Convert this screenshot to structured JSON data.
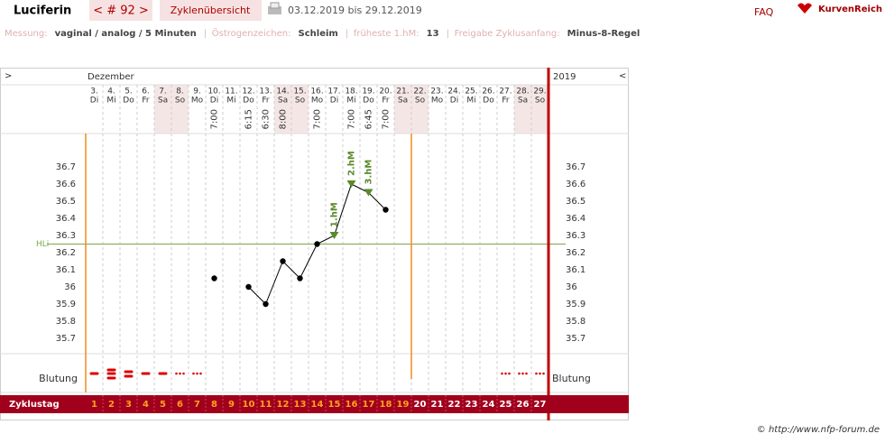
{
  "header": {
    "name": "Luciferin",
    "cycle": "< # 92 >",
    "overview": "Zyklenübersicht",
    "range": "03.12.2019 bis 29.12.2019",
    "faq": "FAQ",
    "logo": "KurvenReich"
  },
  "info": [
    {
      "label": "Messung:",
      "value": "vaginal / analog / 5 Minuten"
    },
    {
      "label": "Östrogenzeichen:",
      "value": "Schleim"
    },
    {
      "label": "früheste 1.hM:",
      "value": "13"
    },
    {
      "label": "Freigabe Zyklusanfang:",
      "value": "Minus-8-Regel"
    }
  ],
  "chart_data": {
    "type": "line",
    "nav_left": ">",
    "nav_right": "<",
    "month": "Dezember",
    "year": "2019",
    "categories": [
      "3.",
      "4.",
      "5.",
      "6.",
      "7.",
      "8.",
      "9.",
      "10.",
      "11.",
      "12.",
      "13.",
      "14.",
      "15.",
      "16.",
      "17.",
      "18.",
      "19.",
      "20.",
      "21.",
      "22.",
      "23.",
      "24.",
      "25.",
      "26.",
      "27.",
      "28.",
      "29."
    ],
    "weekdays": [
      "Di",
      "Mi",
      "Do",
      "Fr",
      "Sa",
      "So",
      "Mo",
      "Di",
      "Mi",
      "Do",
      "Fr",
      "Sa",
      "So",
      "Mo",
      "Di",
      "Mi",
      "Do",
      "Fr",
      "Sa",
      "So",
      "Mo",
      "Di",
      "Mi",
      "Do",
      "Fr",
      "Sa",
      "So"
    ],
    "times": [
      null,
      null,
      null,
      null,
      null,
      null,
      null,
      "7:00",
      null,
      "6:15",
      "6:30",
      "8:00",
      null,
      "7:00",
      null,
      "7:00",
      "6:45",
      "7:00",
      null,
      null,
      null,
      null,
      null,
      null,
      null,
      null,
      null
    ],
    "values": [
      null,
      null,
      null,
      null,
      null,
      null,
      null,
      36.05,
      null,
      36.0,
      35.9,
      36.15,
      36.05,
      36.25,
      36.3,
      36.6,
      36.55,
      36.45,
      null,
      null,
      null,
      null,
      null,
      null,
      null,
      null,
      null
    ],
    "high_labels": [
      null,
      null,
      null,
      null,
      null,
      null,
      null,
      null,
      null,
      null,
      null,
      null,
      null,
      null,
      "1.hM",
      "2.hM",
      "3.hM",
      null,
      null,
      null,
      null,
      null,
      null,
      null,
      null,
      null,
      null
    ],
    "color": "#000000",
    "high_color": "#5a8a2a",
    "ylim": [
      35.6,
      36.9
    ],
    "yticks": [
      35.7,
      35.8,
      35.9,
      36,
      36.1,
      36.2,
      36.3,
      36.4,
      36.5,
      36.6,
      36.7
    ],
    "hline": {
      "value": 36.25,
      "label": "HLi",
      "color": "#7aa84a"
    },
    "bleeding_label": "Blutung",
    "cycle_day_label": "Zyklustag",
    "cycle_days": [
      1,
      2,
      3,
      4,
      5,
      6,
      7,
      8,
      9,
      10,
      11,
      12,
      13,
      14,
      15,
      16,
      17,
      18,
      19,
      20,
      21,
      22,
      23,
      24,
      25,
      26,
      27
    ],
    "evaluation_end": 19
  },
  "copyright": "© http://www.nfp-forum.de"
}
